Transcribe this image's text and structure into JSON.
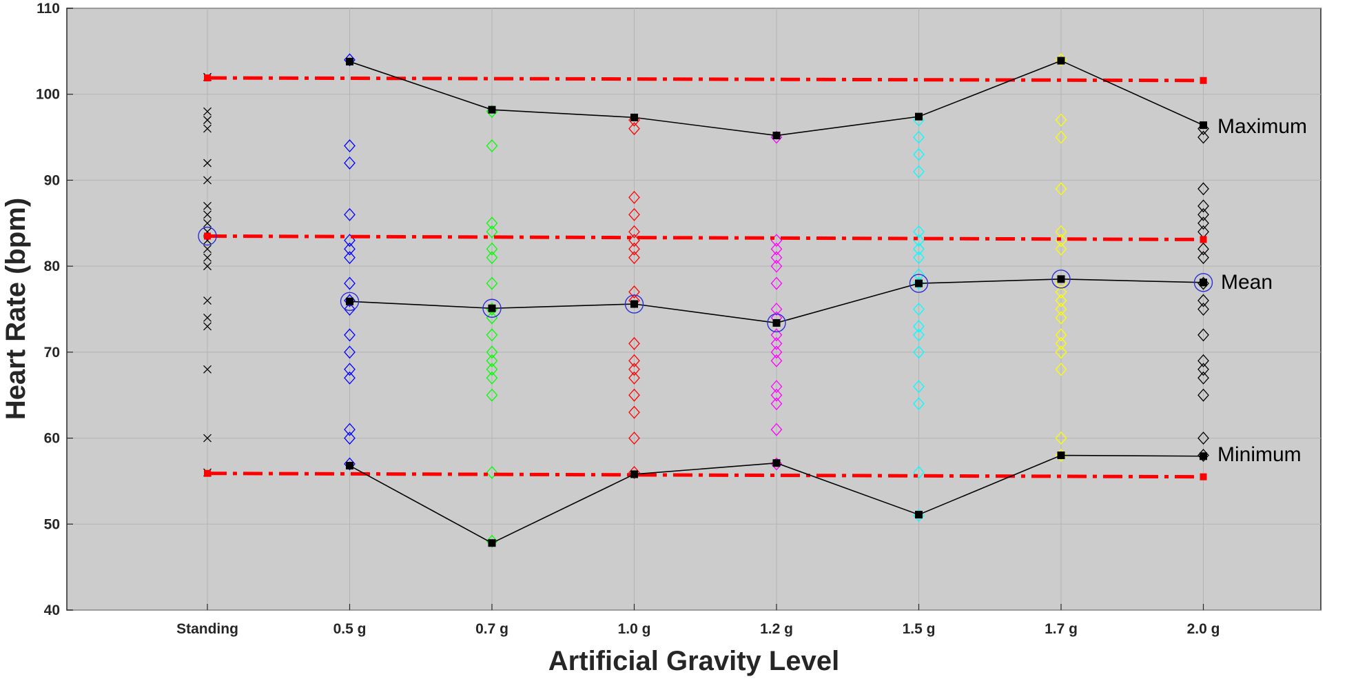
{
  "chart_data": {
    "type": "scatter",
    "xlabel": "Artificial Gravity Level",
    "ylabel": "Heart Rate (bpm)",
    "categories": [
      "Standing",
      "0.5 g",
      "0.7 g",
      "1.0 g",
      "1.2 g",
      "1.5 g",
      "1.7 g",
      "2.0 g"
    ],
    "ylim": [
      40,
      110
    ],
    "yticks": [
      40,
      50,
      60,
      70,
      80,
      90,
      100,
      110
    ],
    "grid": true,
    "colors": {
      "background": "#cccccc",
      "grid": "#b3b3b3",
      "reference": "#ff0000",
      "summary": "#000000",
      "mean_circle": "#2b2bd9"
    },
    "individual_points": [
      {
        "category": "Standing",
        "marker": "x",
        "color": "#000000",
        "values": [
          102,
          98,
          97,
          96,
          92,
          90,
          87,
          86,
          85,
          84,
          83,
          82,
          81,
          80,
          76,
          74,
          73,
          68,
          60,
          56
        ]
      },
      {
        "category": "0.5 g",
        "marker": "diamond",
        "color": "#0000ff",
        "values": [
          104,
          94,
          92,
          86,
          83,
          82,
          81,
          78,
          76,
          75,
          72,
          70,
          68,
          67,
          61,
          60,
          57
        ]
      },
      {
        "category": "0.7 g",
        "marker": "diamond",
        "color": "#00ff00",
        "values": [
          98,
          94,
          85,
          84,
          82,
          81,
          78,
          75,
          74,
          72,
          70,
          69,
          68,
          67,
          65,
          56,
          48
        ]
      },
      {
        "category": "1.0 g",
        "marker": "diamond",
        "color": "#ff0000",
        "values": [
          97,
          96,
          88,
          86,
          84,
          83,
          82,
          81,
          77,
          76,
          71,
          69,
          68,
          67,
          65,
          63,
          60,
          56
        ]
      },
      {
        "category": "1.2 g",
        "marker": "diamond",
        "color": "#ff00ff",
        "values": [
          95,
          83,
          82,
          81,
          80,
          78,
          75,
          74,
          72,
          71,
          70,
          69,
          66,
          65,
          64,
          61,
          57
        ]
      },
      {
        "category": "1.5 g",
        "marker": "diamond",
        "color": "#00ffff",
        "values": [
          97,
          95,
          93,
          91,
          84,
          83,
          82,
          81,
          79,
          78,
          75,
          73,
          72,
          70,
          66,
          64,
          56,
          51
        ]
      },
      {
        "category": "1.7 g",
        "marker": "diamond",
        "color": "#ffff00",
        "values": [
          104,
          97,
          95,
          89,
          84,
          83,
          82,
          78,
          77,
          76,
          75,
          74,
          72,
          71,
          70,
          68,
          60,
          58
        ]
      },
      {
        "category": "2.0 g",
        "marker": "diamond",
        "color": "#000000",
        "values": [
          96,
          95,
          89,
          87,
          86,
          85,
          84,
          82,
          81,
          78,
          76,
          75,
          72,
          69,
          68,
          67,
          65,
          60,
          58
        ]
      }
    ],
    "series": [
      {
        "name": "Maximum",
        "style": "solid",
        "values": [
          102,
          103.8,
          98.2,
          97.3,
          95.2,
          97.4,
          103.9,
          96.4
        ]
      },
      {
        "name": "Mean",
        "style": "solid",
        "values": [
          83.5,
          75.9,
          75.1,
          75.6,
          73.4,
          78.0,
          78.5,
          78.1
        ]
      },
      {
        "name": "Minimum",
        "style": "solid",
        "values": [
          56,
          56.8,
          47.8,
          55.8,
          57.1,
          51.1,
          58.0,
          57.9
        ]
      }
    ],
    "reference_lines": [
      {
        "level": "maximum",
        "from": 101.9,
        "to": 101.6
      },
      {
        "level": "mean",
        "from": 83.5,
        "to": 83.1
      },
      {
        "level": "minimum",
        "from": 55.9,
        "to": 55.5
      }
    ],
    "annotations": [
      "Maximum",
      "Mean",
      "Minimum"
    ]
  }
}
